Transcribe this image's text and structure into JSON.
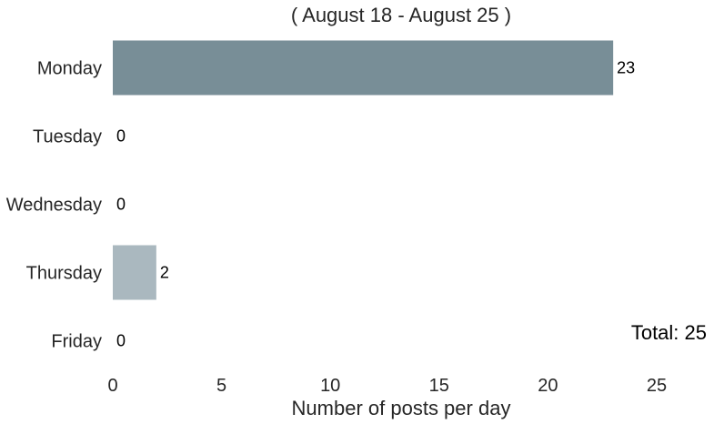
{
  "chart_data": {
    "type": "bar",
    "orientation": "horizontal",
    "title": "( August 18 - August 25 )",
    "categories": [
      "Monday",
      "Tuesday",
      "Wednesday",
      "Thursday",
      "Friday"
    ],
    "values": [
      23,
      0,
      0,
      2,
      0
    ],
    "bar_colors": [
      "#788e97",
      "#aab8bf",
      "#aab8bf",
      "#aab8bf",
      "#aab8bf"
    ],
    "xlabel": "Number of posts per day",
    "ylabel": "",
    "xlim": [
      0,
      27.5
    ],
    "xticks": [
      0,
      5,
      10,
      15,
      20,
      25
    ],
    "grid": false,
    "annotation": "Total: 25"
  }
}
